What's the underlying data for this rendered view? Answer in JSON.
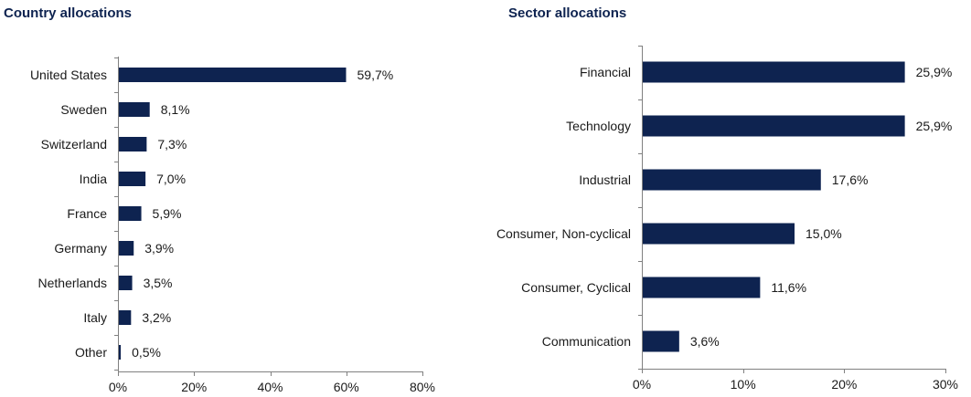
{
  "chart_data": [
    {
      "type": "bar",
      "orientation": "horizontal",
      "title": "Country allocations",
      "categories": [
        "United States",
        "Sweden",
        "Switzerland",
        "India",
        "France",
        "Germany",
        "Netherlands",
        "Italy",
        "Other"
      ],
      "values": [
        59.7,
        8.1,
        7.3,
        7.0,
        5.9,
        3.9,
        3.5,
        3.2,
        0.5
      ],
      "value_labels": [
        "59,7%",
        "8,1%",
        "7,3%",
        "7,0%",
        "5,9%",
        "3,9%",
        "3,5%",
        "3,2%",
        "0,5%"
      ],
      "xlim": [
        0,
        80
      ],
      "xticks": [
        0,
        20,
        40,
        60,
        80
      ],
      "xtick_labels": [
        "0%",
        "20%",
        "40%",
        "60%",
        "80%"
      ],
      "grid": false,
      "bar_color": "#0e2350"
    },
    {
      "type": "bar",
      "orientation": "horizontal",
      "title": "Sector allocations",
      "categories": [
        "Financial",
        "Technology",
        "Industrial",
        "Consumer, Non-cyclical",
        "Consumer, Cyclical",
        "Communication"
      ],
      "values": [
        25.9,
        25.9,
        17.6,
        15.0,
        11.6,
        3.6
      ],
      "value_labels": [
        "25,9%",
        "25,9%",
        "17,6%",
        "15,0%",
        "11,6%",
        "3,6%"
      ],
      "xlim": [
        0,
        30
      ],
      "xticks": [
        0,
        10,
        20,
        30
      ],
      "xtick_labels": [
        "0%",
        "10%",
        "20%",
        "30%"
      ],
      "grid": false,
      "bar_color": "#0e2350"
    }
  ]
}
